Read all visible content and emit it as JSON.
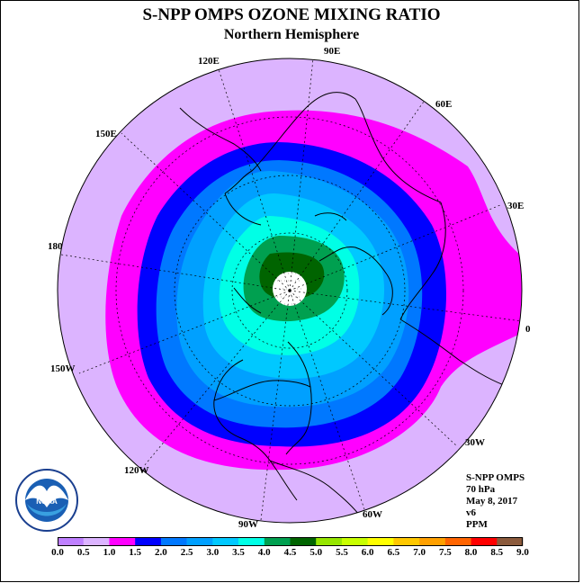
{
  "title": "S-NPP OMPS OZONE MIXING RATIO",
  "subtitle": "Northern Hemisphere",
  "longitude_labels": [
    "120E",
    "90E",
    "60E",
    "150E",
    "30E",
    "180",
    "0",
    "150W",
    "30W",
    "120W",
    "60W",
    "90W"
  ],
  "info": {
    "instrument": "S-NPP OMPS",
    "level": "70 hPa",
    "date": "May 8, 2017",
    "version": "v6",
    "unit": "PPM"
  },
  "logo_text": "NOAA",
  "colorbar": {
    "ticks": [
      "0.0",
      "0.5",
      "1.0",
      "1.5",
      "2.0",
      "2.5",
      "3.0",
      "3.5",
      "4.0",
      "4.5",
      "5.0",
      "5.5",
      "6.0",
      "6.5",
      "7.0",
      "7.5",
      "8.0",
      "8.5",
      "9.0"
    ],
    "colors": [
      "#bf80ff",
      "#dcb4ff",
      "#ff00ff",
      "#0000ff",
      "#0078ff",
      "#00a0ff",
      "#00c8ff",
      "#00ffe6",
      "#00a050",
      "#006400",
      "#96e600",
      "#c8ff00",
      "#ffff00",
      "#ffc800",
      "#ffa000",
      "#ff6400",
      "#ff0000",
      "#8b5a3c"
    ]
  },
  "map_colors": {
    "ocean_outer": "#dcb4ff",
    "band_1_0": "#ff00ff",
    "band_1_5": "#0000ff",
    "band_2_0": "#0078ff",
    "band_2_5": "#00a0ff",
    "band_3_0": "#00c8ff",
    "band_3_5": "#00ffe6",
    "band_4_0": "#00a050",
    "band_4_5": "#006400",
    "pole": "#ffffff"
  }
}
